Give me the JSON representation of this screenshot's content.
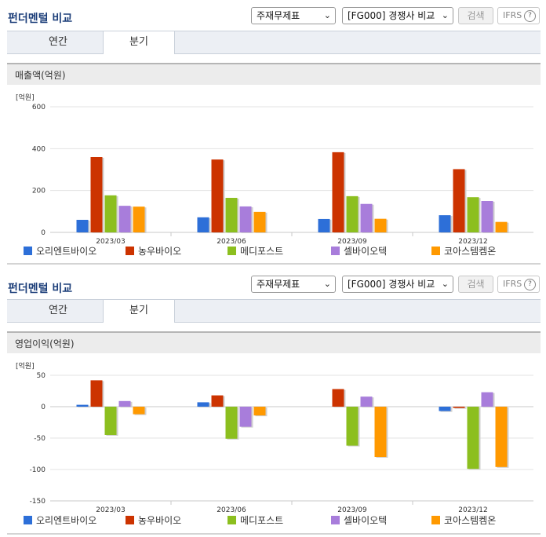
{
  "colors": {
    "c0": "#2d6fd8",
    "c1": "#cc3300",
    "c2": "#8cbf1f",
    "c3": "#a87ddb",
    "c4": "#ff9900"
  },
  "panels": [
    {
      "title": "펀더멘털 비교",
      "select1": "주재무제표",
      "select2": "[FG000] 경쟁사 비교",
      "search": "검색",
      "ifrs": "IFRS",
      "help": "?",
      "tabs": [
        "연간",
        "분기"
      ],
      "active_tab": 1,
      "section": "매출액(억원)",
      "unit": "[억원]",
      "legend": [
        "오리엔트바이오",
        "농우바이오",
        "메디포스트",
        "셀바이오텍",
        "코아스템켐온"
      ]
    },
    {
      "title": "펀더멘털 비교",
      "select1": "주재무제표",
      "select2": "[FG000] 경쟁사 비교",
      "search": "검색",
      "ifrs": "IFRS",
      "help": "?",
      "tabs": [
        "연간",
        "분기"
      ],
      "active_tab": 1,
      "section": "영업이익(억원)",
      "unit": "[억원]",
      "legend": [
        "오리엔트바이오",
        "농우바이오",
        "메디포스트",
        "셀바이오텍",
        "코아스템켐온"
      ]
    }
  ],
  "chart_data": [
    {
      "type": "bar",
      "title": "매출액(억원)",
      "ylabel": "[억원]",
      "ylim": [
        0,
        600
      ],
      "yticks": [
        0,
        200,
        400,
        600
      ],
      "categories": [
        "2023/03",
        "2023/06",
        "2023/09",
        "2023/12"
      ],
      "series": [
        {
          "name": "오리엔트바이오",
          "values": [
            60,
            72,
            64,
            82
          ]
        },
        {
          "name": "농우바이오",
          "values": [
            360,
            348,
            383,
            302
          ]
        },
        {
          "name": "메디포스트",
          "values": [
            177,
            165,
            173,
            168
          ]
        },
        {
          "name": "셀바이오텍",
          "values": [
            127,
            124,
            136,
            150
          ]
        },
        {
          "name": "코아스템켐온",
          "values": [
            123,
            98,
            65,
            50
          ]
        }
      ],
      "grid": true,
      "legend_position": "bottom"
    },
    {
      "type": "bar",
      "title": "영업이익(억원)",
      "ylabel": "[억원]",
      "ylim": [
        -150,
        50
      ],
      "yticks": [
        -150,
        -100,
        -50,
        0,
        50
      ],
      "categories": [
        "2023/03",
        "2023/06",
        "2023/09",
        "2023/12"
      ],
      "series": [
        {
          "name": "오리엔트바이오",
          "values": [
            3,
            7,
            0,
            -7
          ]
        },
        {
          "name": "농우바이오",
          "values": [
            42,
            18,
            28,
            -2
          ]
        },
        {
          "name": "메디포스트",
          "values": [
            -45,
            -51,
            -62,
            -99
          ]
        },
        {
          "name": "셀바이오텍",
          "values": [
            9,
            -32,
            16,
            23
          ]
        },
        {
          "name": "코아스템켐온",
          "values": [
            -12,
            -14,
            -80,
            -96
          ]
        }
      ],
      "grid": true,
      "legend_position": "bottom"
    }
  ]
}
